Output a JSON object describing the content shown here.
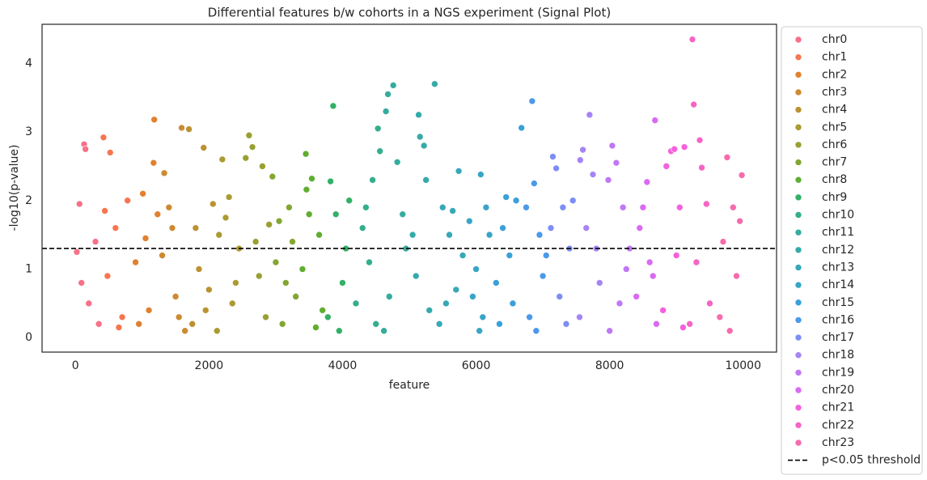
{
  "chart_data": {
    "type": "scatter",
    "title": "Differential features b/w cohorts in a NGS experiment (Signal Plot)",
    "x_label": "feature",
    "y_label": "-log10(p-value)",
    "xlim": [
      -500,
      10500
    ],
    "ylim": [
      -0.21,
      4.57
    ],
    "xticks": [
      0,
      2000,
      4000,
      6000,
      8000,
      10000
    ],
    "yticks": [
      0,
      1,
      2,
      3,
      4
    ],
    "grid": false,
    "legend_position": "outside-right",
    "hline": {
      "name": "p<0.05 threshold",
      "value": 1.301,
      "color": "#000000"
    },
    "series": [
      {
        "name": "chr0",
        "color": "#f77189",
        "x": [
          20,
          60,
          130,
          150,
          200,
          300,
          350,
          90
        ],
        "values": [
          1.25,
          1.95,
          2.82,
          2.75,
          0.5,
          1.4,
          0.2,
          0.8
        ]
      },
      {
        "name": "chr1",
        "color": "#f67650",
        "x": [
          420,
          440,
          520,
          600,
          700,
          780,
          480,
          650
        ],
        "values": [
          2.92,
          1.85,
          2.7,
          1.6,
          0.3,
          2.0,
          0.9,
          0.15
        ]
      },
      {
        "name": "chr2",
        "color": "#e0812f",
        "x": [
          1010,
          1180,
          1170,
          900,
          1100,
          1230,
          950,
          1050
        ],
        "values": [
          2.1,
          3.18,
          2.55,
          1.1,
          0.4,
          1.8,
          0.2,
          1.45
        ]
      },
      {
        "name": "chr3",
        "color": "#ce8a31",
        "x": [
          1330,
          1590,
          1400,
          1500,
          1300,
          1640,
          1450,
          1550
        ],
        "values": [
          2.4,
          3.06,
          1.9,
          0.6,
          1.2,
          0.1,
          1.6,
          0.3
        ]
      },
      {
        "name": "chr4",
        "color": "#bb9232",
        "x": [
          1700,
          1920,
          1800,
          2000,
          1750,
          2060,
          1850,
          1950
        ],
        "values": [
          3.04,
          2.77,
          1.6,
          0.7,
          0.2,
          1.95,
          1.0,
          0.4
        ]
      },
      {
        "name": "chr5",
        "color": "#ac9a32",
        "x": [
          2200,
          2300,
          2150,
          2400,
          2450,
          2120,
          2350,
          2250
        ],
        "values": [
          2.6,
          2.05,
          1.5,
          0.8,
          1.3,
          0.1,
          0.5,
          1.75
        ]
      },
      {
        "name": "chr6",
        "color": "#99a032",
        "x": [
          2600,
          2550,
          2650,
          2800,
          2700,
          2850,
          2750,
          2900
        ],
        "values": [
          2.95,
          2.62,
          2.78,
          2.5,
          1.4,
          0.3,
          0.9,
          1.65
        ]
      },
      {
        "name": "chr7",
        "color": "#83a632",
        "x": [
          2950,
          3050,
          3200,
          3300,
          3000,
          3100,
          3250,
          3150
        ],
        "values": [
          2.35,
          1.7,
          1.9,
          0.6,
          1.1,
          0.2,
          1.4,
          0.8
        ]
      },
      {
        "name": "chr8",
        "color": "#5fae31",
        "x": [
          3450,
          3540,
          3460,
          3650,
          3700,
          3400,
          3600,
          3500
        ],
        "values": [
          2.68,
          2.32,
          2.16,
          1.5,
          0.4,
          1.0,
          0.15,
          1.8
        ]
      },
      {
        "name": "chr9",
        "color": "#32b166",
        "x": [
          3860,
          3820,
          3900,
          4000,
          4100,
          3780,
          4050,
          3950
        ],
        "values": [
          3.38,
          2.28,
          1.8,
          0.8,
          2.0,
          0.3,
          1.3,
          0.1
        ]
      },
      {
        "name": "chr10",
        "color": "#34ae8c",
        "x": [
          4530,
          4560,
          4450,
          4300,
          4200,
          4400,
          4500,
          4350
        ],
        "values": [
          3.05,
          2.72,
          2.3,
          1.6,
          0.5,
          1.1,
          0.2,
          1.9
        ]
      },
      {
        "name": "chr11",
        "color": "#35ac9e",
        "x": [
          4680,
          4650,
          4760,
          4820,
          4900,
          4700,
          4950,
          4620
        ],
        "values": [
          3.55,
          3.3,
          3.68,
          2.56,
          1.8,
          0.6,
          1.3,
          0.1
        ]
      },
      {
        "name": "chr12",
        "color": "#36aaab",
        "x": [
          5140,
          5160,
          5220,
          5380,
          5250,
          5050,
          5300,
          5100
        ],
        "values": [
          3.25,
          2.93,
          2.8,
          3.7,
          2.3,
          1.5,
          0.4,
          0.9
        ]
      },
      {
        "name": "chr13",
        "color": "#37a8b8",
        "x": [
          5740,
          5500,
          5600,
          5700,
          5450,
          5800,
          5650,
          5550
        ],
        "values": [
          2.43,
          1.9,
          1.5,
          0.7,
          0.2,
          1.2,
          1.85,
          0.5
        ]
      },
      {
        "name": "chr14",
        "color": "#38a5c7",
        "x": [
          6070,
          5900,
          6000,
          6100,
          6200,
          5950,
          6150,
          6050
        ],
        "values": [
          2.38,
          1.7,
          1.0,
          0.3,
          1.5,
          0.6,
          1.9,
          0.1
        ]
      },
      {
        "name": "chr15",
        "color": "#3aa0d9",
        "x": [
          6680,
          6600,
          6400,
          6300,
          6500,
          6350,
          6550,
          6450
        ],
        "values": [
          3.06,
          2.0,
          1.6,
          0.8,
          1.2,
          0.2,
          0.5,
          2.05
        ]
      },
      {
        "name": "chr16",
        "color": "#4b99ea",
        "x": [
          6840,
          6870,
          6950,
          7000,
          6750,
          6800,
          7050,
          6900
        ],
        "values": [
          3.45,
          2.25,
          1.5,
          0.9,
          1.9,
          0.3,
          1.2,
          0.1
        ]
      },
      {
        "name": "chr17",
        "color": "#7c8ef4",
        "x": [
          7150,
          7200,
          7300,
          7400,
          7250,
          7450,
          7350,
          7120
        ],
        "values": [
          2.64,
          2.47,
          1.9,
          1.3,
          0.6,
          2.0,
          0.2,
          1.6
        ]
      },
      {
        "name": "chr18",
        "color": "#a585f4",
        "x": [
          7560,
          7600,
          7700,
          7750,
          7650,
          7850,
          7550,
          7800
        ],
        "values": [
          2.59,
          2.74,
          3.25,
          2.38,
          1.6,
          0.8,
          0.3,
          1.3
        ]
      },
      {
        "name": "chr19",
        "color": "#c078f4",
        "x": [
          8040,
          7980,
          8100,
          8200,
          8300,
          8150,
          8000,
          8250
        ],
        "values": [
          2.8,
          2.3,
          2.55,
          1.9,
          1.3,
          0.5,
          0.1,
          1.0
        ]
      },
      {
        "name": "chr20",
        "color": "#d96bf2",
        "x": [
          8680,
          8560,
          8450,
          8600,
          8400,
          8700,
          8500,
          8650
        ],
        "values": [
          3.17,
          2.27,
          1.6,
          1.1,
          0.6,
          0.2,
          1.9,
          0.9
        ]
      },
      {
        "name": "chr21",
        "color": "#f461dd",
        "x": [
          8920,
          8970,
          9120,
          8850,
          9050,
          8800,
          9000,
          9100
        ],
        "values": [
          2.72,
          2.75,
          2.78,
          2.5,
          1.9,
          0.4,
          1.2,
          0.15
        ]
      },
      {
        "name": "chr22",
        "color": "#f565c4",
        "x": [
          9240,
          9260,
          9350,
          9380,
          9450,
          9300,
          9500,
          9200
        ],
        "values": [
          4.35,
          3.4,
          2.88,
          2.48,
          1.95,
          1.1,
          0.5,
          0.2
        ]
      },
      {
        "name": "chr23",
        "color": "#f66bad",
        "x": [
          9760,
          9980,
          9850,
          9700,
          9900,
          9650,
          9950,
          9800
        ],
        "values": [
          2.63,
          2.37,
          1.9,
          1.4,
          0.9,
          0.3,
          1.7,
          0.1
        ]
      }
    ]
  }
}
